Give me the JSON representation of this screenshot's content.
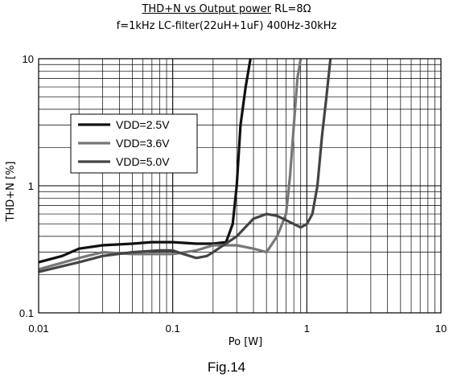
{
  "title_main": "THD+N vs Output power",
  "title_rl": "RL=8Ω",
  "subtitle": "f=1kHz LC-filter(22uH+1uF) 400Hz-30kHz",
  "figure_caption": "Fig.14",
  "chart_data": {
    "type": "line",
    "xlabel": "Po [W]",
    "ylabel": "THD+N [%]",
    "x_scale": "log",
    "y_scale": "log",
    "xlim": [
      0.01,
      10
    ],
    "ylim": [
      0.1,
      10
    ],
    "x_ticks": [
      "0.01",
      "0.1",
      "1",
      "10"
    ],
    "y_ticks": [
      "0.1",
      "1",
      "10"
    ],
    "grid": true,
    "legend_position": "upper-left",
    "series": [
      {
        "name": "VDD=2.5V",
        "color": "#111111",
        "points": [
          [
            0.01,
            0.25
          ],
          [
            0.015,
            0.28
          ],
          [
            0.02,
            0.32
          ],
          [
            0.03,
            0.34
          ],
          [
            0.05,
            0.35
          ],
          [
            0.07,
            0.36
          ],
          [
            0.1,
            0.36
          ],
          [
            0.15,
            0.35
          ],
          [
            0.2,
            0.35
          ],
          [
            0.25,
            0.36
          ],
          [
            0.28,
            0.5
          ],
          [
            0.3,
            1.0
          ],
          [
            0.32,
            3.0
          ],
          [
            0.35,
            6.0
          ],
          [
            0.38,
            10
          ]
        ]
      },
      {
        "name": "VDD=3.6V",
        "color": "#777777",
        "points": [
          [
            0.01,
            0.22
          ],
          [
            0.02,
            0.27
          ],
          [
            0.03,
            0.3
          ],
          [
            0.05,
            0.29
          ],
          [
            0.1,
            0.29
          ],
          [
            0.15,
            0.31
          ],
          [
            0.2,
            0.34
          ],
          [
            0.25,
            0.34
          ],
          [
            0.3,
            0.34
          ],
          [
            0.4,
            0.32
          ],
          [
            0.5,
            0.3
          ],
          [
            0.6,
            0.4
          ],
          [
            0.7,
            0.6
          ],
          [
            0.75,
            1.2
          ],
          [
            0.8,
            3.0
          ],
          [
            0.85,
            7.0
          ],
          [
            0.9,
            10
          ]
        ]
      },
      {
        "name": "VDD=5.0V",
        "color": "#444444",
        "points": [
          [
            0.01,
            0.21
          ],
          [
            0.02,
            0.25
          ],
          [
            0.03,
            0.28
          ],
          [
            0.05,
            0.3
          ],
          [
            0.08,
            0.31
          ],
          [
            0.1,
            0.31
          ],
          [
            0.12,
            0.29
          ],
          [
            0.15,
            0.27
          ],
          [
            0.18,
            0.28
          ],
          [
            0.2,
            0.3
          ],
          [
            0.3,
            0.4
          ],
          [
            0.4,
            0.55
          ],
          [
            0.5,
            0.6
          ],
          [
            0.6,
            0.58
          ],
          [
            0.8,
            0.5
          ],
          [
            0.9,
            0.47
          ],
          [
            1.0,
            0.5
          ],
          [
            1.1,
            0.6
          ],
          [
            1.2,
            1.0
          ],
          [
            1.3,
            2.5
          ],
          [
            1.4,
            5.0
          ],
          [
            1.5,
            10
          ]
        ]
      }
    ]
  }
}
